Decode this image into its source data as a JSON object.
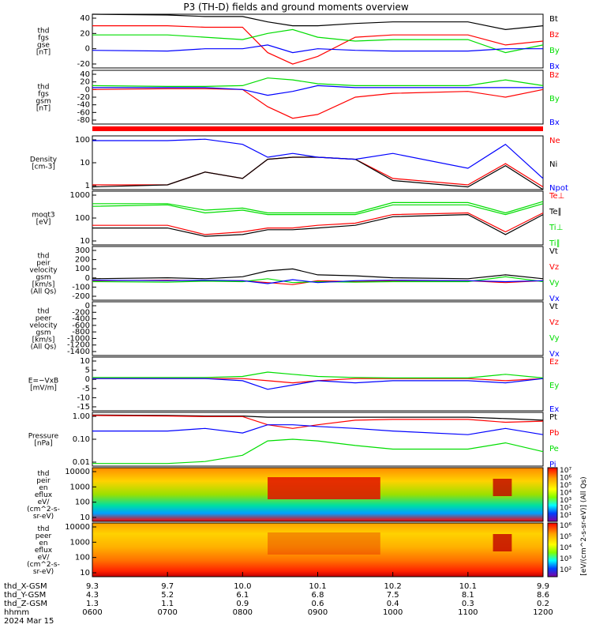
{
  "title": "P3 (TH-D) fields and ground moments overview",
  "colors": {
    "black": "#000000",
    "red": "#ff0000",
    "green": "#00dd00",
    "blue": "#0000ff"
  },
  "panels": [
    {
      "id": "fgs-gse",
      "ylabel": [
        "thd",
        "fgs",
        "gse",
        "[nT]"
      ],
      "ticks": [
        "40",
        "20",
        "0",
        "-20"
      ],
      "legend": [
        [
          "Bt",
          "black"
        ],
        [
          "Bz",
          "red"
        ],
        [
          "By",
          "green"
        ],
        [
          "Bx",
          "blue"
        ]
      ]
    },
    {
      "id": "fgs-gsm",
      "ylabel": [
        "thd",
        "fgs",
        "gsm",
        "[nT]"
      ],
      "ticks": [
        "40",
        "20",
        "0",
        "-20",
        "-40",
        "-60",
        "-80"
      ],
      "legend": [
        [
          "Bz",
          "red"
        ],
        [
          "By",
          "green"
        ],
        [
          "Bx",
          "blue"
        ]
      ]
    },
    {
      "id": "density",
      "ylabel": [
        "Density",
        "[cm-3]"
      ],
      "ticks": [
        "100",
        "10",
        "1"
      ],
      "legend": [
        [
          "Ne",
          "red"
        ],
        [
          "Ni",
          "black"
        ],
        [
          "Npot",
          "blue"
        ]
      ]
    },
    {
      "id": "temperature",
      "ylabel": [
        "moqt3",
        "[eV]"
      ],
      "ticks": [
        "1000",
        "100",
        "10"
      ],
      "legend": [
        [
          "Te⊥",
          "red"
        ],
        [
          "Te∥",
          "black"
        ],
        [
          "Ti⊥",
          "green"
        ],
        [
          "Ti∥",
          "green"
        ]
      ]
    },
    {
      "id": "peir-velocity",
      "ylabel": [
        "thd",
        "peir",
        "velocity",
        "gsm",
        "[km/s]",
        "(All Qs)"
      ],
      "ticks": [
        "300",
        "200",
        "100",
        "0",
        "-100",
        "-200"
      ],
      "legend": [
        [
          "Vt",
          "black"
        ],
        [
          "Vz",
          "red"
        ],
        [
          "Vy",
          "green"
        ],
        [
          "Vx",
          "blue"
        ]
      ]
    },
    {
      "id": "peer-velocity",
      "ylabel": [
        "thd",
        "peer",
        "velocity",
        "gsm",
        "[km/s]",
        "(All Qs)"
      ],
      "ticks": [
        "0",
        "-200",
        "-400",
        "-600",
        "-800",
        "-1000",
        "-1200",
        "-1400"
      ],
      "legend": [
        [
          "Vt",
          "black"
        ],
        [
          "Vz",
          "red"
        ],
        [
          "Vy",
          "green"
        ],
        [
          "Vx",
          "blue"
        ]
      ]
    },
    {
      "id": "efield",
      "ylabel": [
        "E=−VxB",
        "[mV/m]"
      ],
      "ticks": [
        "10",
        "5",
        "0",
        "-5",
        "-10",
        "-15"
      ],
      "legend": [
        [
          "Ez",
          "red"
        ],
        [
          "Ey",
          "green"
        ],
        [
          "Ex",
          "blue"
        ]
      ]
    },
    {
      "id": "pressure",
      "ylabel": [
        "Pressure",
        "[nPa]"
      ],
      "ticks": [
        "1.00",
        "0.10",
        "0.01"
      ],
      "legend": [
        [
          "Pt",
          "black"
        ],
        [
          "Pb",
          "red"
        ],
        [
          "Pe",
          "green"
        ],
        [
          "Pi",
          "blue"
        ]
      ]
    },
    {
      "id": "peir-eflux",
      "ylabel": [
        "thd",
        "peir",
        "en",
        "eflux",
        "eV/",
        "(cm^2-s-",
        "sr-eV)"
      ],
      "ticks": [
        "10000",
        "1000",
        "100",
        "10"
      ]
    },
    {
      "id": "peer-eflux",
      "ylabel": [
        "thd",
        "peer",
        "en",
        "eflux",
        "eV/",
        "(cm^2-s-",
        "sr-eV)"
      ],
      "ticks": [
        "10000",
        "1000",
        "100",
        "10"
      ]
    }
  ],
  "colorbar": {
    "label": "[eV/(cm^2-s-sr-eV)] (All Qs)",
    "ticks_top": [
      "10⁷",
      "10⁶",
      "10⁵",
      "10⁴",
      "10³",
      "10²",
      "10¹"
    ],
    "ticks_bottom": [
      "10⁶",
      "10⁵",
      "10⁴",
      "10³",
      "10²"
    ]
  },
  "xaxis": {
    "row_labels": [
      "thd_X-GSM",
      "thd_Y-GSM",
      "thd_Z-GSM",
      "hhmm",
      "2024 Mar 15"
    ],
    "times": [
      "0600",
      "0700",
      "0800",
      "0900",
      "1000",
      "1100",
      "1200"
    ],
    "x_gsm": [
      "9.3",
      "9.7",
      "10.0",
      "10.1",
      "10.2",
      "10.1",
      "9.9"
    ],
    "y_gsm": [
      "4.3",
      "5.2",
      "6.1",
      "6.8",
      "7.5",
      "8.1",
      "8.6"
    ],
    "z_gsm": [
      "1.3",
      "1.1",
      "0.9",
      "0.6",
      "0.4",
      "0.3",
      "0.2"
    ]
  },
  "chart_data": [
    {
      "type": "line",
      "ylabel": "thd fgs gse [nT]",
      "xlim": [
        "0600",
        "1200"
      ],
      "ylim": [
        -25,
        45
      ],
      "x": [
        "0600",
        "0700",
        "0730",
        "0800",
        "0820",
        "0840",
        "0900",
        "0930",
        "1000",
        "1100",
        "1130",
        "1200"
      ],
      "series": [
        {
          "name": "Bt",
          "values": [
            45,
            44,
            42,
            42,
            35,
            30,
            30,
            33,
            35,
            35,
            25,
            30
          ]
        },
        {
          "name": "Bz",
          "values": [
            30,
            30,
            28,
            28,
            -5,
            -20,
            -10,
            15,
            18,
            18,
            5,
            10
          ]
        },
        {
          "name": "By",
          "values": [
            18,
            18,
            15,
            12,
            20,
            25,
            15,
            10,
            12,
            12,
            -5,
            5
          ]
        },
        {
          "name": "Bx",
          "values": [
            -2,
            -3,
            0,
            0,
            5,
            -5,
            0,
            -2,
            -3,
            -3,
            0,
            0
          ]
        }
      ]
    },
    {
      "type": "line",
      "ylabel": "thd fgs gsm [nT]",
      "xlim": [
        "0600",
        "1200"
      ],
      "ylim": [
        -95,
        45
      ],
      "x": [
        "0600",
        "0700",
        "0730",
        "0800",
        "0820",
        "0840",
        "0900",
        "0930",
        "1000",
        "1100",
        "1130",
        "1200"
      ],
      "series": [
        {
          "name": "Bz",
          "values": [
            -5,
            -3,
            -3,
            -5,
            -50,
            -80,
            -70,
            -25,
            -15,
            -10,
            -25,
            -5
          ]
        },
        {
          "name": "By",
          "values": [
            5,
            3,
            3,
            5,
            25,
            20,
            10,
            5,
            5,
            5,
            20,
            5
          ]
        },
        {
          "name": "Bx",
          "values": [
            0,
            0,
            0,
            -5,
            -20,
            -10,
            5,
            0,
            0,
            0,
            0,
            0
          ]
        }
      ]
    },
    {
      "type": "line",
      "ylabel": "Density [cm-3]",
      "xlim": [
        "0600",
        "1200"
      ],
      "ylim": [
        0.3,
        100
      ],
      "log": true,
      "x": [
        "0600",
        "0700",
        "0730",
        "0800",
        "0820",
        "0840",
        "0900",
        "0930",
        "1000",
        "1100",
        "1130",
        "1200"
      ],
      "series": [
        {
          "name": "Ne",
          "values": [
            0.5,
            0.5,
            2,
            1,
            8,
            10,
            10,
            8,
            1,
            0.5,
            5,
            0.4
          ]
        },
        {
          "name": "Ni",
          "values": [
            0.4,
            0.5,
            2,
            1,
            8,
            10,
            10,
            8,
            0.8,
            0.4,
            4,
            0.3
          ]
        },
        {
          "name": "Npot",
          "values": [
            60,
            60,
            70,
            40,
            10,
            15,
            10,
            8,
            15,
            3,
            40,
            1
          ]
        }
      ]
    },
    {
      "type": "line",
      "ylabel": "moqt3 [eV]",
      "xlim": [
        "0600",
        "1200"
      ],
      "ylim": [
        10,
        3000
      ],
      "log": true,
      "x": [
        "0600",
        "0700",
        "0730",
        "0800",
        "0820",
        "0840",
        "0900",
        "0930",
        "1000",
        "1100",
        "1130",
        "1200"
      ],
      "series": [
        {
          "name": "Te⊥",
          "values": [
            80,
            80,
            30,
            40,
            60,
            60,
            80,
            100,
            250,
            300,
            40,
            300
          ]
        },
        {
          "name": "Te∥",
          "values": [
            60,
            60,
            25,
            30,
            50,
            50,
            60,
            80,
            200,
            250,
            30,
            250
          ]
        },
        {
          "name": "Ti⊥",
          "values": [
            800,
            800,
            400,
            500,
            300,
            300,
            300,
            300,
            900,
            900,
            300,
            1000
          ]
        },
        {
          "name": "Ti∥",
          "values": [
            600,
            700,
            300,
            400,
            250,
            250,
            250,
            250,
            700,
            700,
            250,
            800
          ]
        }
      ]
    },
    {
      "type": "line",
      "ylabel": "thd peir velocity gsm [km/s] (All Qs)",
      "xlim": [
        "0600",
        "1200"
      ],
      "ylim": [
        -200,
        350
      ],
      "x": [
        "0600",
        "0700",
        "0730",
        "0800",
        "0820",
        "0840",
        "0900",
        "0930",
        "1000",
        "1100",
        "1130",
        "1200"
      ],
      "series": [
        {
          "name": "Vt",
          "values": [
            20,
            30,
            20,
            40,
            100,
            120,
            60,
            50,
            30,
            20,
            60,
            20
          ]
        },
        {
          "name": "Vz",
          "values": [
            0,
            5,
            0,
            0,
            -20,
            -40,
            0,
            -10,
            0,
            0,
            -20,
            0
          ]
        },
        {
          "name": "Vy",
          "values": [
            -10,
            -15,
            -5,
            -10,
            20,
            -20,
            -10,
            -15,
            -10,
            -10,
            40,
            -10
          ]
        },
        {
          "name": "Vx",
          "values": [
            5,
            0,
            5,
            0,
            -30,
            10,
            -20,
            0,
            5,
            0,
            -10,
            0
          ]
        }
      ]
    },
    {
      "type": "line",
      "ylabel": "thd peer velocity gsm [km/s] (All Qs)",
      "xlim": [
        "0600",
        "1200"
      ],
      "ylim": [
        -1400,
        50
      ],
      "series": []
    },
    {
      "type": "line",
      "ylabel": "E=−VxB [mV/m]",
      "xlim": [
        "0600",
        "1200"
      ],
      "ylim": [
        -15,
        10
      ],
      "x": [
        "0600",
        "0700",
        "0730",
        "0800",
        "0820",
        "0840",
        "0900",
        "0930",
        "1000",
        "1100",
        "1130",
        "1200"
      ],
      "series": [
        {
          "name": "Ez",
          "values": [
            0,
            0,
            0,
            0,
            -1,
            -2,
            -1,
            0,
            0,
            0,
            -1,
            0
          ]
        },
        {
          "name": "Ey",
          "values": [
            0.5,
            0.5,
            0.5,
            1,
            3,
            2,
            1,
            0.5,
            0.3,
            0.3,
            2,
            0.3
          ]
        },
        {
          "name": "Ex",
          "values": [
            0,
            0,
            0,
            -1,
            -5,
            -3,
            -1,
            -2,
            -1,
            -1,
            -2,
            0
          ]
        }
      ]
    },
    {
      "type": "line",
      "ylabel": "Pressure [nPa]",
      "xlim": [
        "0600",
        "1200"
      ],
      "ylim": [
        0.003,
        1.2
      ],
      "log": true,
      "x": [
        "0600",
        "0700",
        "0730",
        "0800",
        "0820",
        "0840",
        "0900",
        "0930",
        "1000",
        "1100",
        "1130",
        "1200"
      ],
      "series": [
        {
          "name": "Pt",
          "values": [
            0.9,
            0.85,
            0.8,
            0.8,
            0.7,
            0.7,
            0.7,
            0.7,
            0.7,
            0.7,
            0.6,
            0.5
          ]
        },
        {
          "name": "Pb",
          "values": [
            0.85,
            0.8,
            0.75,
            0.75,
            0.3,
            0.2,
            0.3,
            0.5,
            0.55,
            0.55,
            0.4,
            0.45
          ]
        },
        {
          "name": "Pe",
          "values": [
            0.004,
            0.004,
            0.005,
            0.01,
            0.05,
            0.06,
            0.05,
            0.03,
            0.02,
            0.02,
            0.04,
            0.015
          ]
        },
        {
          "name": "Pi",
          "values": [
            0.15,
            0.15,
            0.2,
            0.12,
            0.3,
            0.3,
            0.25,
            0.2,
            0.15,
            0.1,
            0.2,
            0.1
          ]
        }
      ]
    },
    {
      "type": "heatmap",
      "ylabel": "thd peir en eflux eV/(cm^2-s-sr-eV)",
      "xlim": [
        "0600",
        "1200"
      ],
      "ylim": [
        7,
        20000
      ],
      "log": true,
      "zlim": [
        10,
        10000000
      ]
    },
    {
      "type": "heatmap",
      "ylabel": "thd peer en eflux eV/(cm^2-s-sr-eV)",
      "xlim": [
        "0600",
        "1200"
      ],
      "ylim": [
        7,
        20000
      ],
      "log": true,
      "zlim": [
        100,
        1000000
      ]
    }
  ]
}
